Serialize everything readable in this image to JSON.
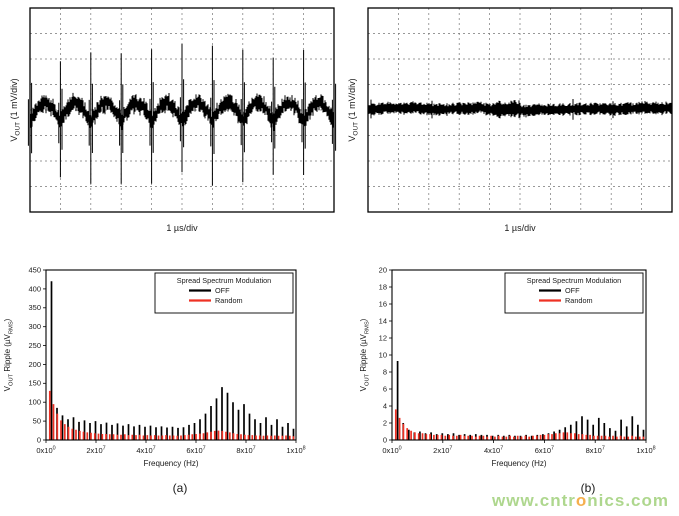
{
  "captions": {
    "a": "(a)",
    "b": "(b)"
  },
  "watermark": {
    "prefix": "www.cntr",
    "accent": "o",
    "suffix": "nics.com",
    "color": "#a6d382",
    "accent_color": "#f5a73b"
  },
  "chart_data": [
    {
      "id": "scope-a",
      "type": "line",
      "panel": "top-left",
      "ylabel": "V_{OUT} (1 mV/div)",
      "xlabel": "1 µs/div",
      "grid": {
        "x_divisions": 10,
        "y_divisions": 8
      },
      "waveform": {
        "kind": "switching-ripple",
        "description": "Output ripple, spread spectrum OFF: periodic domes with tall switching spikes each cycle, about 10 cycles across 10 time divisions",
        "cycles_visible": 10,
        "hump_amplitude_div": 0.75,
        "spike_up_div": 2.8,
        "spike_down_div": 2.3,
        "band_half_div": 0.22,
        "noise_div": 0.1,
        "seed": 11
      }
    },
    {
      "id": "scope-b",
      "type": "line",
      "panel": "top-right",
      "ylabel": "V_{OUT} (1 mV/div)",
      "xlabel": "1 µs/div",
      "grid": {
        "x_divisions": 10,
        "y_divisions": 8
      },
      "waveform": {
        "kind": "flat-noise",
        "description": "Output ripple with random spread spectrum modulation: flat narrow noise band across the screen",
        "band_half_div": 0.12,
        "noise_div": 0.08,
        "seed": 29
      }
    },
    {
      "id": "spectrum-a",
      "type": "bar",
      "panel": "bottom-left",
      "title": "",
      "xlabel": "Frequency (Hz)",
      "ylabel": "V_{OUT} Ripple (µV_{RMS})",
      "xlim": [
        0,
        100000000
      ],
      "ylim": [
        0,
        450
      ],
      "ytick_step": 50,
      "xtick_values": [
        0,
        20000000,
        40000000,
        60000000,
        80000000,
        100000000
      ],
      "xtick_labels": [
        "0x10^{0}",
        "2x10^{7}",
        "4x10^{7}",
        "6x10^{7}",
        "8x10^{7}",
        "1x10^{8}"
      ],
      "legend": {
        "title": "Spread Spectrum Modulation",
        "position": "top-right",
        "items": [
          {
            "label": "OFF",
            "color": "#000000"
          },
          {
            "label": "Random",
            "color": "#ee3124"
          }
        ]
      },
      "series": [
        {
          "name": "OFF",
          "color": "#000000",
          "x_step": 2200000,
          "values": [
            420,
            85,
            65,
            55,
            60,
            48,
            52,
            45,
            50,
            42,
            46,
            40,
            44,
            38,
            42,
            36,
            40,
            35,
            38,
            34,
            36,
            33,
            35,
            32,
            34,
            40,
            45,
            55,
            70,
            90,
            110,
            140,
            125,
            100,
            80,
            95,
            70,
            55,
            45,
            60,
            40,
            55,
            35,
            45,
            30
          ]
        },
        {
          "name": "Random",
          "color": "#ee3124",
          "x_step": 1500000,
          "values": [
            130,
            95,
            70,
            52,
            42,
            35,
            30,
            27,
            24,
            22,
            20,
            19,
            18,
            17,
            16,
            16,
            15,
            15,
            14,
            14,
            15,
            13,
            14,
            13,
            14,
            12,
            13,
            12,
            13,
            12,
            12,
            13,
            12,
            12,
            11,
            12,
            13,
            14,
            15,
            16,
            17,
            18,
            20,
            22,
            24,
            25,
            24,
            22,
            20,
            18,
            16,
            15,
            14,
            13,
            13,
            12,
            12,
            11,
            12,
            11,
            12,
            11,
            11,
            12,
            11,
            10
          ]
        }
      ]
    },
    {
      "id": "spectrum-b",
      "type": "bar",
      "panel": "bottom-right",
      "title": "",
      "xlabel": "Frequency (Hz)",
      "ylabel": "V_{OUT} Ripple (µV_{RMS})",
      "xlim": [
        0,
        100000000
      ],
      "ylim": [
        0,
        20
      ],
      "ytick_step": 2,
      "xtick_values": [
        0,
        20000000,
        40000000,
        60000000,
        80000000,
        100000000
      ],
      "xtick_labels": [
        "0x10^{0}",
        "2x10^{7}",
        "4x10^{7}",
        "6x10^{7}",
        "8x10^{7}",
        "1x10^{8}"
      ],
      "legend": {
        "title": "Spread Spectrum Modulation",
        "position": "top-right",
        "items": [
          {
            "label": "OFF",
            "color": "#000000"
          },
          {
            "label": "Random",
            "color": "#ee3124"
          }
        ]
      },
      "series": [
        {
          "name": "OFF",
          "color": "#000000",
          "x_step": 2200000,
          "values": [
            9.3,
            2.0,
            1.2,
            0.9,
            1.0,
            0.8,
            0.9,
            0.7,
            0.8,
            0.7,
            0.8,
            0.6,
            0.7,
            0.6,
            0.7,
            0.6,
            0.6,
            0.5,
            0.6,
            0.5,
            0.6,
            0.5,
            0.5,
            0.6,
            0.5,
            0.6,
            0.7,
            0.8,
            1.0,
            1.2,
            1.5,
            1.8,
            2.2,
            2.8,
            2.4,
            1.8,
            2.6,
            2.0,
            1.4,
            1.1,
            2.4,
            1.6,
            2.8,
            1.8,
            1.2
          ]
        },
        {
          "name": "Random",
          "color": "#ee3124",
          "x_step": 1500000,
          "values": [
            3.6,
            2.6,
            1.9,
            1.4,
            1.1,
            0.9,
            0.8,
            0.8,
            0.7,
            0.7,
            0.6,
            0.6,
            0.6,
            0.5,
            0.6,
            0.5,
            0.5,
            0.6,
            0.5,
            0.5,
            0.5,
            0.4,
            0.5,
            0.5,
            0.4,
            0.5,
            0.4,
            0.5,
            0.4,
            0.4,
            0.5,
            0.4,
            0.5,
            0.4,
            0.5,
            0.4,
            0.5,
            0.5,
            0.6,
            0.6,
            0.7,
            0.7,
            0.8,
            0.8,
            0.9,
            0.9,
            0.8,
            0.8,
            0.7,
            0.7,
            0.6,
            0.6,
            0.5,
            0.5,
            0.5,
            0.5,
            0.4,
            0.5,
            0.4,
            0.5,
            0.4,
            0.4,
            0.5,
            0.4,
            0.4,
            0.4
          ]
        }
      ]
    }
  ]
}
